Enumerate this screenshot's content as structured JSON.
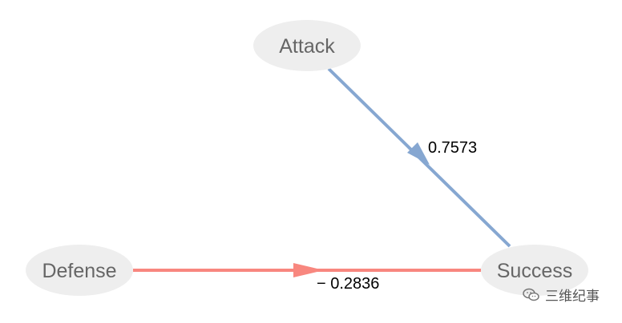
{
  "nodes": {
    "attack": {
      "label": "Attack"
    },
    "defense": {
      "label": "Defense"
    },
    "success": {
      "label": "Success"
    }
  },
  "edges": {
    "attack_success": {
      "label": "0.7573",
      "value": 0.7573,
      "color": "#86a7d1"
    },
    "defense_success": {
      "label": "− 0.2836",
      "value": -0.2836,
      "color": "#f8877f"
    }
  },
  "colors": {
    "node_fill": "#eeeeee",
    "node_text": "#666666",
    "edge_text": "#000000"
  },
  "watermark": {
    "text": "三维纪事",
    "icon": "wechat-icon"
  }
}
